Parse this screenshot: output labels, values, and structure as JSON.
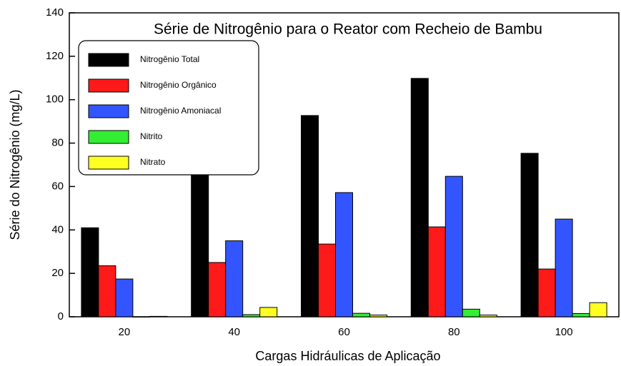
{
  "chart_data": {
    "type": "bar",
    "title": "Série de Nitrogênio para o Reator com Recheio de Bambu",
    "x_label": "Cargas Hidráulicas de Aplicação",
    "y_label": "Série do Nitrogênio (mg/L)",
    "categories": [
      "20",
      "40",
      "60",
      "80",
      "100"
    ],
    "series": [
      {
        "name": "Nitrogênio Total",
        "color": "#000000",
        "values": [
          41,
          68,
          92.7,
          109.8,
          75.3
        ]
      },
      {
        "name": "Nitrogênio Orgânico",
        "color": "#ff1a1a",
        "values": [
          23.5,
          25,
          33.5,
          41.4,
          22
        ]
      },
      {
        "name": "Nitrogênio Amoniacal",
        "color": "#3355ff",
        "values": [
          17.4,
          35,
          57.2,
          64.7,
          45
        ]
      },
      {
        "name": "Nitrito",
        "color": "#33ee33",
        "values": [
          0,
          1,
          1.6,
          3.5,
          1.5
        ]
      },
      {
        "name": "Nitrato",
        "color": "#ffff22",
        "values": [
          0.2,
          4.3,
          0.8,
          0.8,
          6.5
        ]
      }
    ],
    "ylim": [
      0,
      140
    ],
    "yticks": [
      0,
      20,
      40,
      60,
      80,
      100,
      120,
      140
    ],
    "legend": "upper left"
  }
}
